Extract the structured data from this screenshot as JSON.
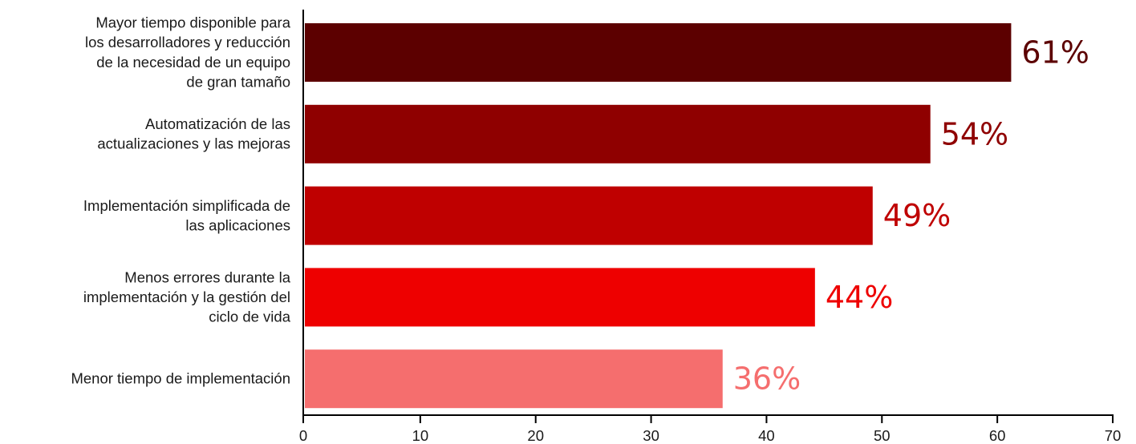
{
  "chart_data": {
    "type": "bar",
    "orientation": "horizontal",
    "categories": [
      [
        "Mayor tiempo disponible para",
        "los desarrolladores y reducción",
        "de la necesidad de un equipo",
        "de gran tamaño"
      ],
      [
        "Automatización de las",
        "actualizaciones y las mejoras"
      ],
      [
        "Implementación simplificada de",
        "las aplicaciones"
      ],
      [
        "Menos errores durante la",
        "implementación y la gestión del",
        "ciclo de vida"
      ],
      [
        "Menor tiempo de implementación"
      ]
    ],
    "values": [
      61.2,
      54.2,
      49.2,
      44.2,
      36.2
    ],
    "data_labels": [
      "61%",
      "54%",
      "49%",
      "44%",
      "36%"
    ],
    "colors": [
      "#5c0000",
      "#8f0000",
      "#bf0000",
      "#ee0000",
      "#f56e6e"
    ],
    "label_colors": [
      "#5c0000",
      "#8f0000",
      "#bf0000",
      "#ee0000",
      "#f56e6e"
    ],
    "xlim": [
      0,
      70
    ],
    "xticks": [
      0,
      10,
      20,
      30,
      40,
      50,
      60,
      70
    ],
    "grid": false,
    "title": "",
    "xlabel": "",
    "ylabel": ""
  }
}
